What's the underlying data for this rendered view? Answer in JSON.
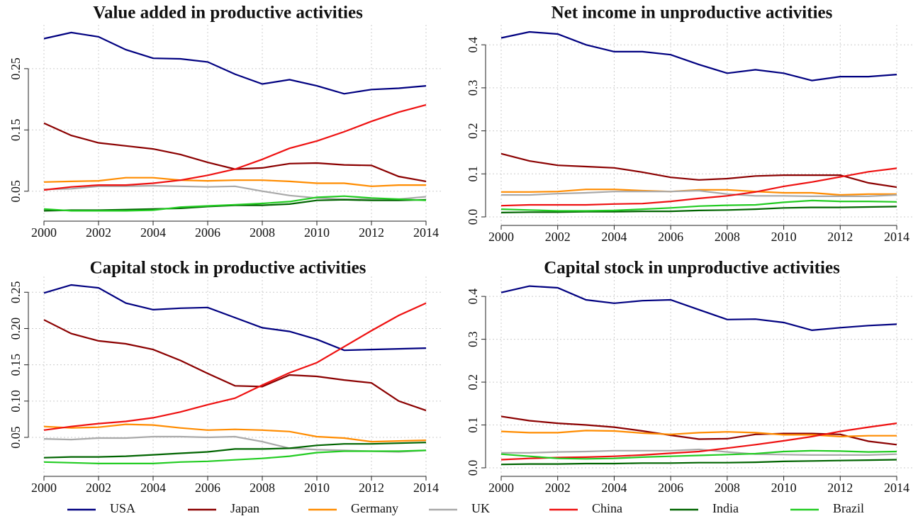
{
  "chart_data": [
    {
      "type": "line",
      "title": "Value added in productive activities",
      "x": [
        2000,
        2001,
        2002,
        2003,
        2004,
        2005,
        2006,
        2007,
        2008,
        2009,
        2010,
        2011,
        2012,
        2013,
        2014
      ],
      "xlim": [
        2000,
        2014
      ],
      "xticks": [
        2000,
        2002,
        2004,
        2006,
        2008,
        2010,
        2012,
        2014
      ],
      "ylim": [
        0.015,
        0.31
      ],
      "yticks": [
        0.05,
        0.15,
        0.25
      ],
      "grid": true,
      "series": [
        {
          "name": "USA",
          "color": "#000080",
          "values": [
            0.299,
            0.309,
            0.302,
            0.281,
            0.267,
            0.266,
            0.261,
            0.241,
            0.225,
            0.232,
            0.222,
            0.209,
            0.216,
            0.218,
            0.222
          ]
        },
        {
          "name": "Japan",
          "color": "#8b0000",
          "values": [
            0.161,
            0.141,
            0.129,
            0.124,
            0.119,
            0.11,
            0.097,
            0.086,
            0.088,
            0.095,
            0.096,
            0.093,
            0.092,
            0.074,
            0.066
          ]
        },
        {
          "name": "Germany",
          "color": "#ff8c00",
          "values": [
            0.065,
            0.066,
            0.067,
            0.072,
            0.072,
            0.068,
            0.067,
            0.068,
            0.068,
            0.066,
            0.063,
            0.063,
            0.058,
            0.06,
            0.06
          ]
        },
        {
          "name": "UK",
          "color": "#a9a9a9",
          "values": [
            0.053,
            0.054,
            0.058,
            0.058,
            0.059,
            0.058,
            0.057,
            0.058,
            0.05,
            0.043,
            0.039,
            0.037,
            0.037,
            0.037,
            0.041
          ]
        },
        {
          "name": "China",
          "color": "#ee1111",
          "values": [
            0.052,
            0.057,
            0.06,
            0.06,
            0.063,
            0.068,
            0.076,
            0.086,
            0.102,
            0.12,
            0.132,
            0.147,
            0.164,
            0.179,
            0.191
          ]
        },
        {
          "name": "India",
          "color": "#006400",
          "values": [
            0.018,
            0.019,
            0.019,
            0.02,
            0.021,
            0.022,
            0.025,
            0.027,
            0.027,
            0.029,
            0.035,
            0.036,
            0.035,
            0.035,
            0.036
          ]
        },
        {
          "name": "Brazil",
          "color": "#22cc22",
          "values": [
            0.021,
            0.018,
            0.018,
            0.018,
            0.019,
            0.024,
            0.026,
            0.028,
            0.03,
            0.033,
            0.04,
            0.042,
            0.039,
            0.037,
            0.035
          ]
        }
      ]
    },
    {
      "type": "line",
      "title": "Net income in unproductive activities",
      "x": [
        2000,
        2001,
        2002,
        2003,
        2004,
        2005,
        2006,
        2007,
        2008,
        2009,
        2010,
        2011,
        2012,
        2013,
        2014
      ],
      "xlim": [
        2000,
        2014
      ],
      "xticks": [
        2000,
        2002,
        2004,
        2006,
        2008,
        2010,
        2012,
        2014
      ],
      "ylim": [
        0,
        0.43
      ],
      "yticks": [
        {
          "value": 0,
          "label": "0.0"
        },
        0.1,
        0.2,
        0.3,
        0.4
      ],
      "grid": true,
      "series": [
        {
          "name": "USA",
          "color": "#000080",
          "values": [
            0.416,
            0.43,
            0.425,
            0.4,
            0.384,
            0.384,
            0.377,
            0.354,
            0.334,
            0.342,
            0.334,
            0.317,
            0.326,
            0.326,
            0.331
          ]
        },
        {
          "name": "Japan",
          "color": "#8b0000",
          "values": [
            0.147,
            0.13,
            0.12,
            0.117,
            0.114,
            0.104,
            0.092,
            0.086,
            0.089,
            0.095,
            0.097,
            0.097,
            0.097,
            0.079,
            0.069
          ]
        },
        {
          "name": "Germany",
          "color": "#ff8c00",
          "values": [
            0.058,
            0.058,
            0.059,
            0.064,
            0.064,
            0.061,
            0.059,
            0.063,
            0.063,
            0.059,
            0.056,
            0.056,
            0.051,
            0.053,
            0.053
          ]
        },
        {
          "name": "UK",
          "color": "#a9a9a9",
          "values": [
            0.051,
            0.051,
            0.054,
            0.056,
            0.059,
            0.059,
            0.059,
            0.061,
            0.053,
            0.049,
            0.049,
            0.048,
            0.048,
            0.048,
            0.051
          ]
        },
        {
          "name": "China",
          "color": "#ee1111",
          "values": [
            0.026,
            0.028,
            0.028,
            0.028,
            0.03,
            0.031,
            0.036,
            0.043,
            0.049,
            0.058,
            0.071,
            0.081,
            0.093,
            0.105,
            0.113
          ]
        },
        {
          "name": "India",
          "color": "#006400",
          "values": [
            0.01,
            0.011,
            0.011,
            0.012,
            0.012,
            0.013,
            0.013,
            0.015,
            0.016,
            0.018,
            0.021,
            0.022,
            0.022,
            0.023,
            0.024
          ]
        },
        {
          "name": "Brazil",
          "color": "#22cc22",
          "values": [
            0.018,
            0.016,
            0.014,
            0.014,
            0.015,
            0.018,
            0.021,
            0.025,
            0.027,
            0.028,
            0.034,
            0.038,
            0.036,
            0.036,
            0.035
          ]
        }
      ]
    },
    {
      "type": "line",
      "title": "Capital stock in productive activities",
      "x": [
        2000,
        2001,
        2002,
        2003,
        2004,
        2005,
        2006,
        2007,
        2008,
        2009,
        2010,
        2011,
        2012,
        2013,
        2014
      ],
      "xlim": [
        2000,
        2014
      ],
      "xticks": [
        2000,
        2002,
        2004,
        2006,
        2008,
        2010,
        2012,
        2014
      ],
      "ylim": [
        0.008,
        0.262
      ],
      "yticks": [
        0.05,
        {
          "value": 0.1,
          "label": "0.10"
        },
        0.15,
        {
          "value": 0.2,
          "label": "0.20"
        },
        0.25
      ],
      "grid": true,
      "series": [
        {
          "name": "USA",
          "color": "#000080",
          "values": [
            0.249,
            0.26,
            0.256,
            0.235,
            0.226,
            0.228,
            0.229,
            0.215,
            0.201,
            0.196,
            0.185,
            0.17,
            0.171,
            0.172,
            0.173
          ]
        },
        {
          "name": "Japan",
          "color": "#8b0000",
          "values": [
            0.212,
            0.193,
            0.183,
            0.179,
            0.171,
            0.156,
            0.138,
            0.121,
            0.12,
            0.136,
            0.134,
            0.129,
            0.125,
            0.1,
            0.087
          ]
        },
        {
          "name": "Germany",
          "color": "#ff8c00",
          "values": [
            0.065,
            0.063,
            0.064,
            0.068,
            0.067,
            0.063,
            0.06,
            0.061,
            0.06,
            0.058,
            0.051,
            0.049,
            0.044,
            0.045,
            0.046
          ]
        },
        {
          "name": "UK",
          "color": "#a9a9a9",
          "values": [
            0.048,
            0.047,
            0.049,
            0.049,
            0.051,
            0.051,
            0.05,
            0.051,
            0.044,
            0.035,
            0.033,
            0.032,
            0.031,
            0.03,
            0.032
          ]
        },
        {
          "name": "China",
          "color": "#ee1111",
          "values": [
            0.06,
            0.065,
            0.069,
            0.072,
            0.077,
            0.085,
            0.095,
            0.104,
            0.122,
            0.139,
            0.153,
            0.175,
            0.197,
            0.218,
            0.235
          ]
        },
        {
          "name": "India",
          "color": "#006400",
          "values": [
            0.022,
            0.023,
            0.023,
            0.024,
            0.026,
            0.028,
            0.03,
            0.034,
            0.034,
            0.035,
            0.039,
            0.041,
            0.041,
            0.042,
            0.043
          ]
        },
        {
          "name": "Brazil",
          "color": "#22cc22",
          "values": [
            0.016,
            0.015,
            0.014,
            0.014,
            0.014,
            0.016,
            0.017,
            0.019,
            0.021,
            0.024,
            0.029,
            0.031,
            0.031,
            0.031,
            0.032
          ]
        }
      ]
    },
    {
      "type": "line",
      "title": "Capital stock in unproductive activities",
      "x": [
        2000,
        2001,
        2002,
        2003,
        2004,
        2005,
        2006,
        2007,
        2008,
        2009,
        2010,
        2011,
        2012,
        2013,
        2014
      ],
      "xlim": [
        2000,
        2014
      ],
      "xticks": [
        2000,
        2002,
        2004,
        2006,
        2008,
        2010,
        2012,
        2014
      ],
      "ylim": [
        0,
        0.43
      ],
      "yticks": [
        {
          "value": 0,
          "label": "0.0"
        },
        0.1,
        0.2,
        0.3,
        0.4
      ],
      "grid": true,
      "series": [
        {
          "name": "USA",
          "color": "#000080",
          "values": [
            0.409,
            0.424,
            0.42,
            0.392,
            0.384,
            0.39,
            0.392,
            0.369,
            0.346,
            0.347,
            0.339,
            0.321,
            0.327,
            0.332,
            0.335
          ]
        },
        {
          "name": "Japan",
          "color": "#8b0000",
          "values": [
            0.12,
            0.11,
            0.104,
            0.1,
            0.095,
            0.086,
            0.076,
            0.067,
            0.068,
            0.078,
            0.08,
            0.08,
            0.078,
            0.062,
            0.054
          ]
        },
        {
          "name": "Germany",
          "color": "#ff8c00",
          "values": [
            0.085,
            0.082,
            0.082,
            0.087,
            0.086,
            0.081,
            0.078,
            0.082,
            0.084,
            0.082,
            0.077,
            0.077,
            0.073,
            0.075,
            0.075
          ]
        },
        {
          "name": "UK",
          "color": "#a9a9a9",
          "values": [
            0.035,
            0.035,
            0.037,
            0.038,
            0.04,
            0.04,
            0.04,
            0.043,
            0.037,
            0.032,
            0.031,
            0.03,
            0.03,
            0.03,
            0.032
          ]
        },
        {
          "name": "China",
          "color": "#ee1111",
          "values": [
            0.019,
            0.022,
            0.024,
            0.025,
            0.027,
            0.03,
            0.034,
            0.038,
            0.046,
            0.054,
            0.063,
            0.073,
            0.085,
            0.095,
            0.104
          ]
        },
        {
          "name": "India",
          "color": "#006400",
          "values": [
            0.008,
            0.009,
            0.009,
            0.01,
            0.01,
            0.011,
            0.011,
            0.012,
            0.012,
            0.013,
            0.015,
            0.016,
            0.017,
            0.018,
            0.019
          ]
        },
        {
          "name": "Brazil",
          "color": "#22cc22",
          "values": [
            0.032,
            0.027,
            0.022,
            0.021,
            0.022,
            0.025,
            0.027,
            0.029,
            0.031,
            0.033,
            0.038,
            0.04,
            0.039,
            0.037,
            0.038
          ]
        }
      ]
    }
  ]
}
